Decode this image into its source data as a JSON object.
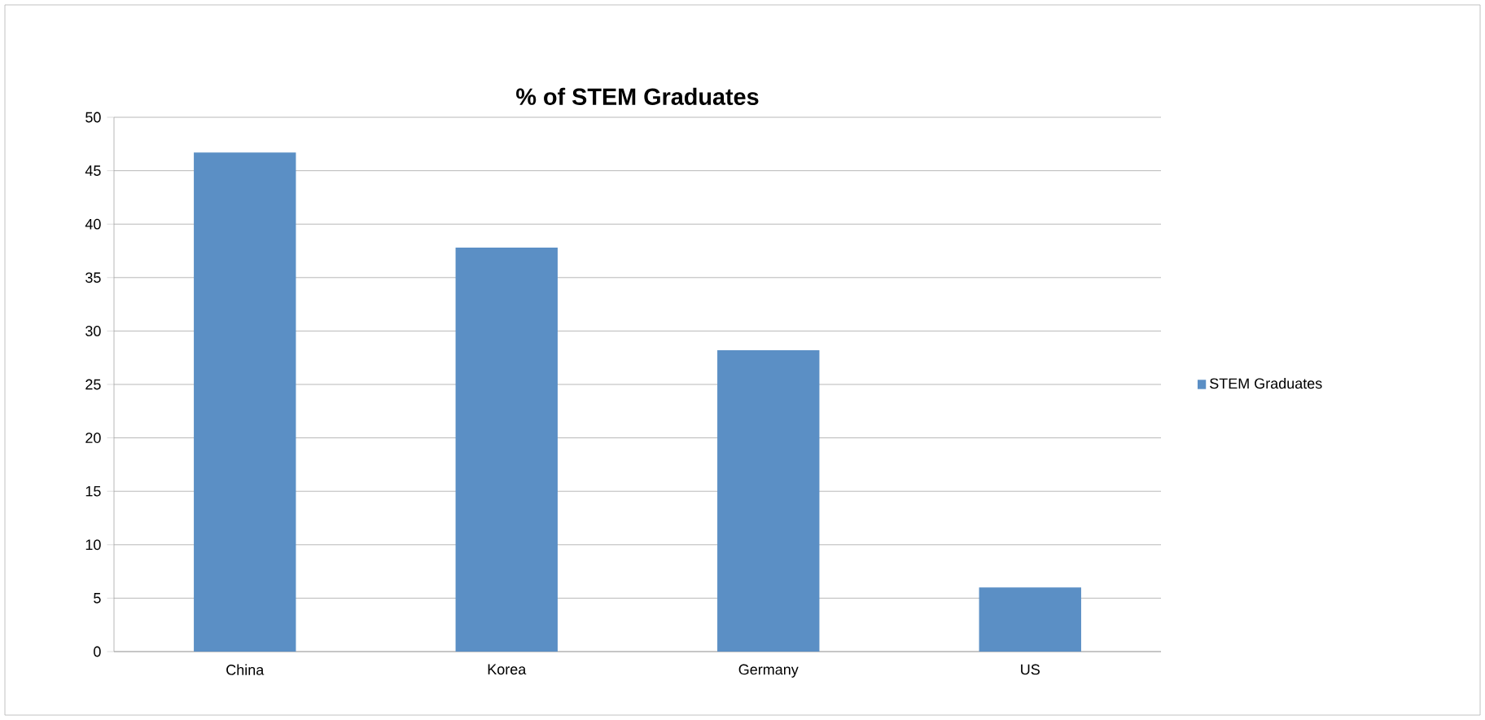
{
  "chart_data": {
    "type": "bar",
    "title": "% of STEM Graduates",
    "categories": [
      "China",
      "Korea",
      "Germany",
      "US"
    ],
    "series": [
      {
        "name": "STEM Graduates",
        "color": "#5b8fc5",
        "values": [
          46.7,
          37.8,
          28.2,
          6.0
        ]
      }
    ],
    "ylim": [
      0,
      50
    ],
    "yticks": [
      0,
      5,
      10,
      15,
      20,
      25,
      30,
      35,
      40,
      45,
      50
    ],
    "grid": "y",
    "legend": "right"
  }
}
